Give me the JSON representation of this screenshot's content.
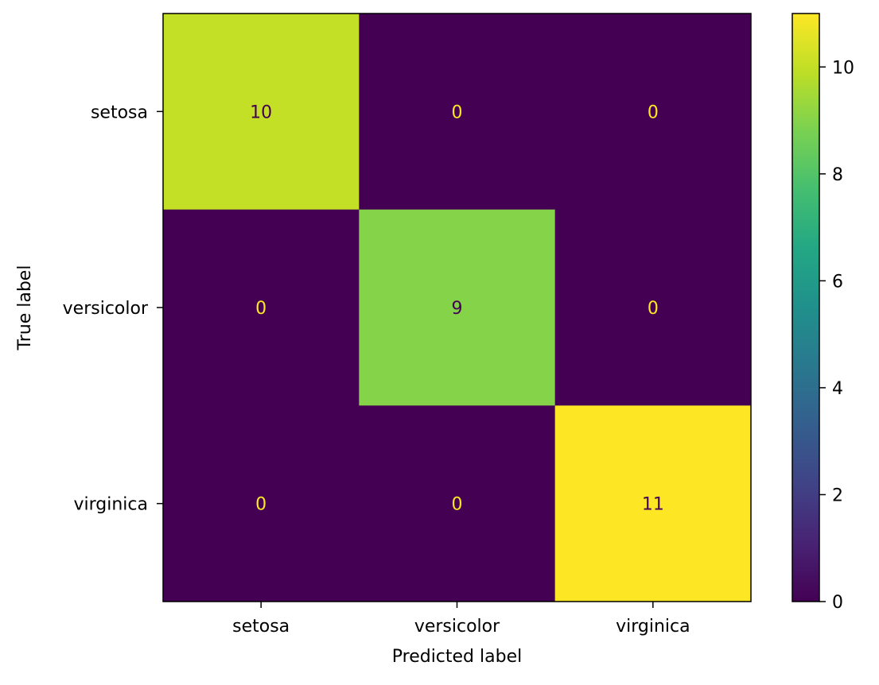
{
  "chart_data": {
    "type": "heatmap",
    "title": "",
    "xlabel": "Predicted label",
    "ylabel": "True label",
    "x_categories": [
      "setosa",
      "versicolor",
      "virginica"
    ],
    "y_categories": [
      "setosa",
      "versicolor",
      "virginica"
    ],
    "values": [
      [
        10,
        0,
        0
      ],
      [
        0,
        9,
        0
      ],
      [
        0,
        0,
        11
      ]
    ],
    "colormap": "viridis",
    "colorbar": {
      "range": [
        0,
        11
      ],
      "ticks": [
        0,
        2,
        4,
        6,
        8,
        10
      ]
    },
    "text_colors": {
      "on_dark": "#fde725",
      "on_light": "#440154"
    },
    "grid": false
  }
}
